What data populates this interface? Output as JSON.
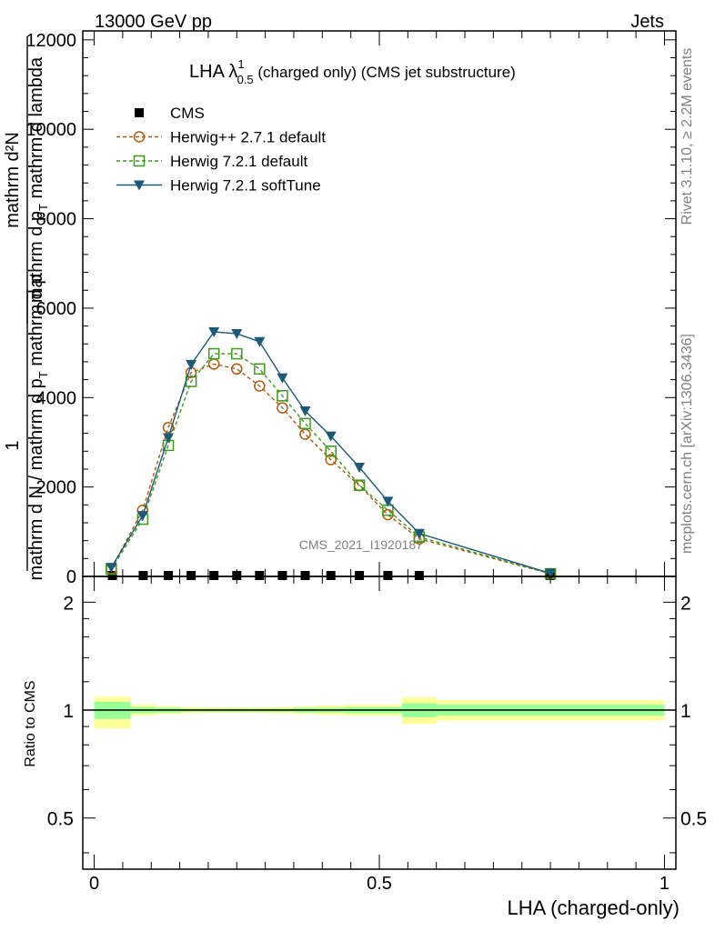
{
  "header": {
    "left": "13000 GeV pp",
    "right": "Jets"
  },
  "side": {
    "rivet": "Rivet 3.1.10, ≥ 2.2M events",
    "mcplots": "mcplots.cern.ch [arXiv:1306.3436]"
  },
  "watermark": "CMS_2021_I1920187",
  "main_ylabel": {
    "line1": "mathrm d²N",
    "line2": "mathrm d p",
    "sub2": "T",
    "line2b": " mathrm d lambda",
    "one": "1",
    "line3": "mathrm d N / mathrm d p",
    "sub3": "T",
    "line3b": " mathrm d p"
  },
  "ratio_ylabel": "Ratio to CMS",
  "xlabel": "LHA (charged-only)",
  "chart_data": [
    {
      "type": "line",
      "title_main": "LHA λ",
      "title_sup": "1",
      "title_sub": "0.5",
      "title_rest": " (charged only) (CMS jet substructure)",
      "xlim": [
        -0.02,
        1.02
      ],
      "ylim": [
        0,
        12200
      ],
      "yticks": [
        0,
        2000,
        4000,
        6000,
        8000,
        10000,
        12000
      ],
      "ytick_labels": [
        "0",
        "2000",
        "4000",
        "6000",
        "8000",
        "10000",
        "12000"
      ],
      "legend_position": "top-left",
      "series": [
        {
          "name": "CMS",
          "style": "data",
          "color": "#000000",
          "x": [
            0.032,
            0.086,
            0.13,
            0.17,
            0.21,
            0.25,
            0.29,
            0.33,
            0.37,
            0.415,
            0.465,
            0.515,
            0.57,
            0.8
          ],
          "y": [
            0,
            0,
            0,
            0,
            0,
            0,
            0,
            0,
            0,
            0,
            0,
            0,
            0,
            0
          ]
        },
        {
          "name": "Herwig++ 2.7.1 default",
          "style": "circle-dashed",
          "color": "#b05a10",
          "x": [
            0.03,
            0.085,
            0.13,
            0.17,
            0.21,
            0.25,
            0.29,
            0.33,
            0.37,
            0.415,
            0.465,
            0.515,
            0.57,
            0.8
          ],
          "y": [
            170,
            1480,
            3330,
            4560,
            4750,
            4640,
            4260,
            3770,
            3180,
            2610,
            2030,
            1380,
            840,
            60
          ]
        },
        {
          "name": "Herwig 7.2.1 default",
          "style": "square-dashed",
          "color": "#3c9a1a",
          "x": [
            0.03,
            0.085,
            0.13,
            0.17,
            0.21,
            0.25,
            0.29,
            0.33,
            0.37,
            0.415,
            0.465,
            0.515,
            0.57,
            0.8
          ],
          "y": [
            160,
            1280,
            2930,
            4360,
            4980,
            4980,
            4640,
            4040,
            3420,
            2800,
            2040,
            1480,
            880,
            60
          ]
        },
        {
          "name": "Herwig 7.2.1 softTune",
          "style": "triangle-solid",
          "color": "#1c5a78",
          "x": [
            0.03,
            0.085,
            0.13,
            0.17,
            0.21,
            0.25,
            0.29,
            0.33,
            0.37,
            0.415,
            0.465,
            0.515,
            0.57,
            0.8
          ],
          "y": [
            200,
            1360,
            3100,
            4740,
            5470,
            5430,
            5250,
            4440,
            3700,
            3140,
            2440,
            1680,
            960,
            70
          ]
        }
      ]
    },
    {
      "type": "area",
      "xlim": [
        -0.02,
        1.02
      ],
      "ylim": [
        0.36,
        2.36
      ],
      "xticks": [
        0,
        0.5,
        1
      ],
      "xtick_labels": [
        "0",
        "0.5",
        "1"
      ],
      "yticks": [
        0.5,
        1,
        2
      ],
      "ytick_labels": [
        "0.5",
        "1",
        "2"
      ],
      "reference": 1,
      "bins": [
        0.0,
        0.064,
        0.108,
        0.152,
        0.19,
        0.23,
        0.27,
        0.31,
        0.35,
        0.39,
        0.44,
        0.54,
        0.6,
        1.0
      ],
      "band_outer_low": [
        0.89,
        0.965,
        0.975,
        0.98,
        0.982,
        0.982,
        0.982,
        0.98,
        0.975,
        0.97,
        0.965,
        0.915,
        0.935
      ],
      "band_outer_high": [
        1.09,
        1.035,
        1.025,
        1.02,
        1.018,
        1.018,
        1.018,
        1.02,
        1.025,
        1.03,
        1.035,
        1.085,
        1.065
      ],
      "band_inner_low": [
        0.945,
        0.98,
        0.985,
        0.99,
        0.99,
        0.99,
        0.99,
        0.99,
        0.985,
        0.985,
        0.98,
        0.955,
        0.965
      ],
      "band_inner_high": [
        1.055,
        1.02,
        1.015,
        1.01,
        1.01,
        1.01,
        1.01,
        1.01,
        1.015,
        1.015,
        1.02,
        1.045,
        1.035
      ],
      "outer_color": "#ffff99",
      "inner_color": "#99ff99"
    }
  ]
}
